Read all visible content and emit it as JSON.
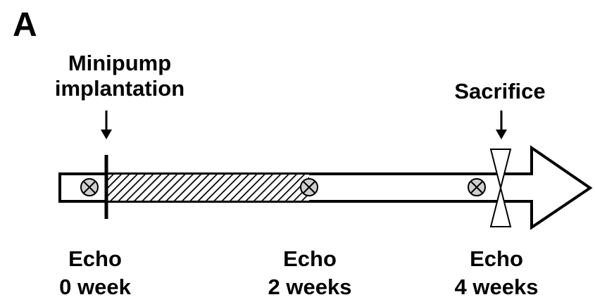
{
  "panel_label": "A",
  "events": {
    "minipump": {
      "line1": "Minipump",
      "line2": "implantation"
    },
    "sacrifice": {
      "label": "Sacrifice"
    }
  },
  "echo": [
    {
      "line1": "Echo",
      "line2": "0 week"
    },
    {
      "line1": "Echo",
      "line2": "2 weeks"
    },
    {
      "line1": "Echo",
      "line2": "4 weeks"
    }
  ],
  "colors": {
    "stroke": "#000000",
    "marker_fill": "#cfcfcf",
    "background": "#ffffff"
  }
}
